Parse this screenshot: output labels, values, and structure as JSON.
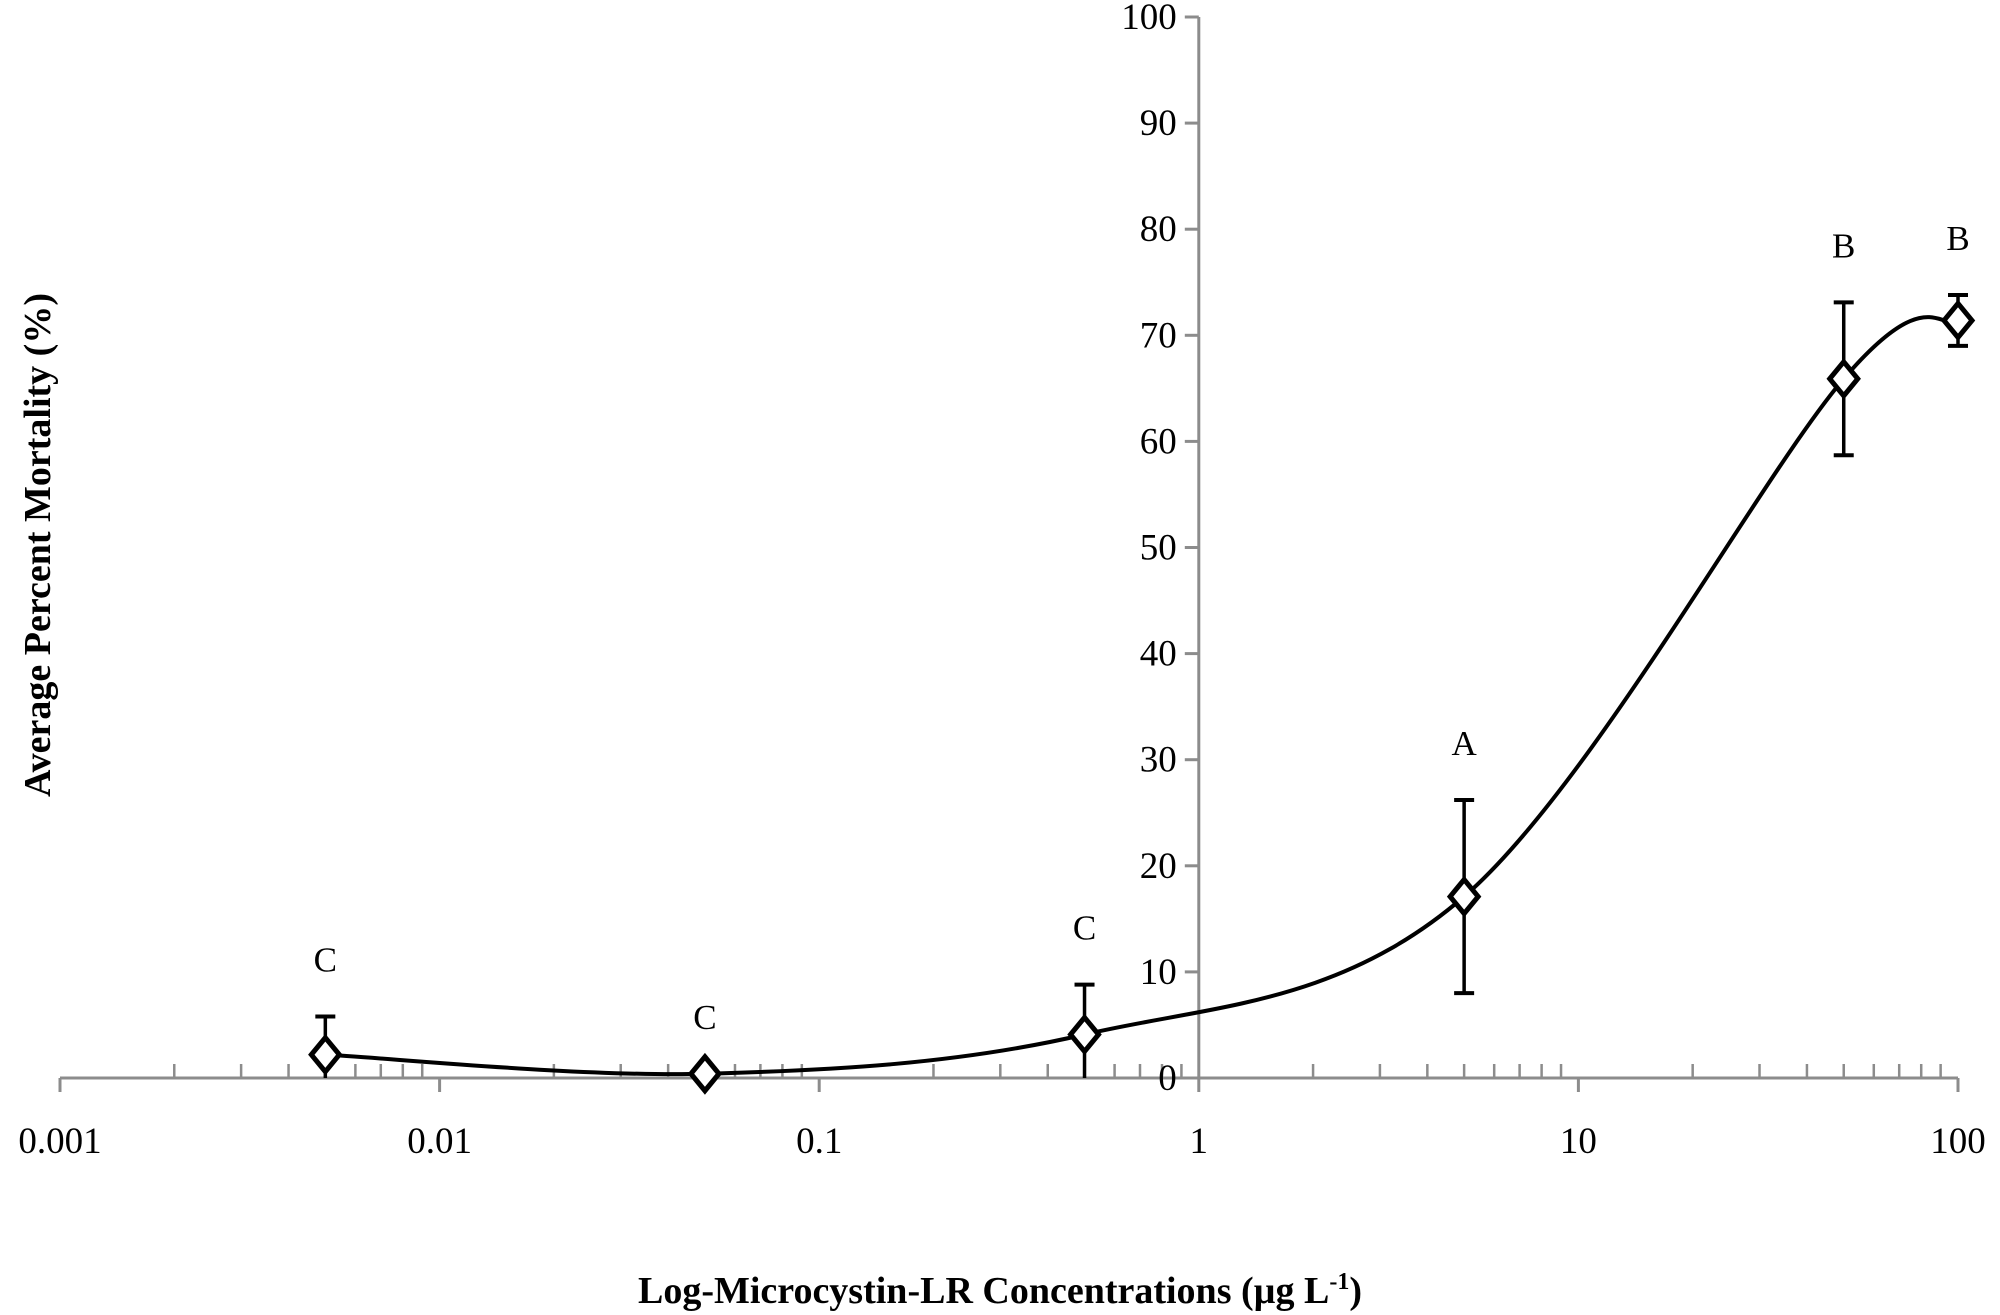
{
  "chart_data": {
    "type": "line",
    "title": "",
    "xlabel": "Log-Microcystin-LR Concentrations (µg L",
    "xlabel_superscript": "-1",
    "xlabel_suffix": ")",
    "ylabel": "Average Percent Mortality (%)",
    "x_scale": "log",
    "xlim": [
      0.001,
      100
    ],
    "ylim": [
      0,
      100
    ],
    "x_tick_labels": [
      "0.001",
      "0.01",
      "0.1",
      "1",
      "10",
      "100"
    ],
    "x_ticks": [
      0.001,
      0.01,
      0.1,
      1,
      10,
      100
    ],
    "y_ticks": [
      0,
      10,
      20,
      30,
      40,
      50,
      60,
      70,
      80,
      90,
      100
    ],
    "y_tick_labels": [
      "0",
      "10",
      "20",
      "30",
      "40",
      "50",
      "60",
      "70",
      "80",
      "90",
      "100"
    ],
    "y_axis_crosses_x_at": 1,
    "grid": false,
    "marker": "open-diamond",
    "line": "smoothed",
    "series_color": "#000000",
    "axis_color": "#8c8c8c",
    "points": [
      {
        "x": 0.005,
        "y": 2.2,
        "error": 3.6,
        "letter": "C"
      },
      {
        "x": 0.05,
        "y": 0.4,
        "error": 0,
        "letter": "C"
      },
      {
        "x": 0.5,
        "y": 4.1,
        "error": 4.7,
        "letter": "C"
      },
      {
        "x": 5,
        "y": 17.1,
        "error": 9.1,
        "letter": "A"
      },
      {
        "x": 50,
        "y": 65.9,
        "error": 7.2,
        "letter": "B"
      },
      {
        "x": 100,
        "y": 71.4,
        "error": 2.4,
        "letter": "B"
      }
    ]
  }
}
